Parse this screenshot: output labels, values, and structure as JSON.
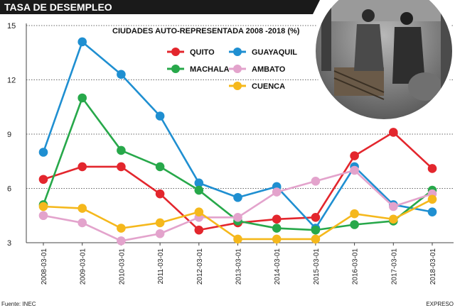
{
  "header": {
    "title": "TASA DE DESEMPLEO"
  },
  "footer": {
    "source": "Fuente: INEC",
    "credit": "EXPRESO"
  },
  "photo": {
    "description_icon": "workers-photo-icon"
  },
  "chart_data": {
    "type": "line",
    "title": "TASA DE DESEMPLEO",
    "subtitle": "CIUDADES AUTO-REPRESENTADA 2008 -2018 (%)",
    "xlabel": "",
    "ylabel": "",
    "ylim": [
      3,
      15
    ],
    "yticks": [
      3,
      6,
      9,
      12,
      15
    ],
    "grid": true,
    "legend_position": "top-center",
    "categories": [
      "2008-03-01",
      "2009-03-01",
      "2010-03-01",
      "2011-03-01",
      "2012-03-01",
      "2013-03-01",
      "2014-03-01",
      "2015-03-01",
      "2016-03-01",
      "2017-03-01",
      "2018-03-01"
    ],
    "series": [
      {
        "name": "QUITO",
        "color": "#e3262d",
        "values": [
          6.5,
          7.2,
          7.2,
          5.7,
          3.7,
          4.1,
          4.3,
          4.4,
          7.8,
          9.1,
          7.1
        ]
      },
      {
        "name": "GUAYAQUIL",
        "color": "#1f8fd1",
        "values": [
          8.0,
          14.1,
          12.3,
          10.0,
          6.3,
          5.5,
          6.1,
          3.8,
          7.2,
          5.1,
          4.7
        ]
      },
      {
        "name": "MACHALA",
        "color": "#27a84a",
        "values": [
          5.1,
          11.0,
          8.1,
          7.2,
          5.9,
          4.2,
          3.8,
          3.7,
          4.0,
          4.2,
          5.9
        ]
      },
      {
        "name": "AMBATO",
        "color": "#e3a3cc",
        "values": [
          4.5,
          4.1,
          3.1,
          3.5,
          4.4,
          4.4,
          5.8,
          6.4,
          7.0,
          5.0,
          5.7
        ]
      },
      {
        "name": "CUENCA",
        "color": "#f5b81c",
        "values": [
          5.0,
          4.9,
          3.8,
          4.1,
          4.7,
          3.2,
          3.2,
          3.2,
          4.6,
          4.3,
          5.4
        ]
      }
    ]
  }
}
